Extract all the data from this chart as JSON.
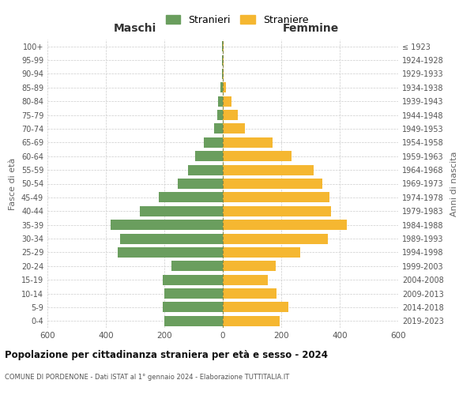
{
  "age_groups": [
    "0-4",
    "5-9",
    "10-14",
    "15-19",
    "20-24",
    "25-29",
    "30-34",
    "35-39",
    "40-44",
    "45-49",
    "50-54",
    "55-59",
    "60-64",
    "65-69",
    "70-74",
    "75-79",
    "80-84",
    "85-89",
    "90-94",
    "95-99",
    "100+"
  ],
  "birth_years": [
    "2019-2023",
    "2014-2018",
    "2009-2013",
    "2004-2008",
    "1999-2003",
    "1994-1998",
    "1989-1993",
    "1984-1988",
    "1979-1983",
    "1974-1978",
    "1969-1973",
    "1964-1968",
    "1959-1963",
    "1954-1958",
    "1949-1953",
    "1944-1948",
    "1939-1943",
    "1934-1938",
    "1929-1933",
    "1924-1928",
    "≤ 1923"
  ],
  "males": [
    200,
    205,
    200,
    205,
    175,
    360,
    350,
    385,
    285,
    220,
    155,
    120,
    95,
    65,
    30,
    20,
    15,
    8,
    3,
    2,
    2
  ],
  "females": [
    195,
    225,
    185,
    155,
    180,
    265,
    360,
    425,
    370,
    365,
    340,
    310,
    235,
    170,
    75,
    50,
    30,
    12,
    3,
    2,
    2
  ],
  "male_color": "#6a9e5e",
  "female_color": "#f5b731",
  "title": "Popolazione per cittadinanza straniera per età e sesso - 2024",
  "subtitle": "COMUNE DI PORDENONE - Dati ISTAT al 1° gennaio 2024 - Elaborazione TUTTITALIA.IT",
  "left_label": "Maschi",
  "right_label": "Femmine",
  "y_left_label": "Fasce di età",
  "y_right_label": "Anni di nascita",
  "legend_male": "Stranieri",
  "legend_female": "Straniere",
  "xlim": 600,
  "bg_color": "#ffffff",
  "grid_color": "#cccccc",
  "bar_height": 0.75
}
